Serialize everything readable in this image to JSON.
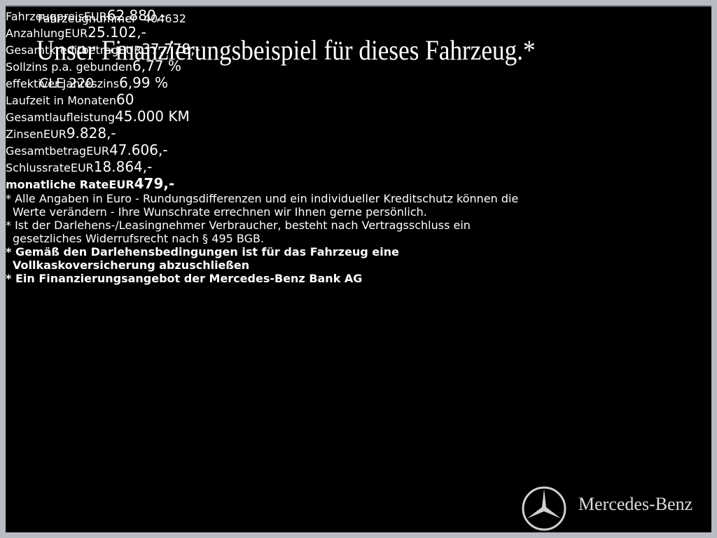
{
  "header": {
    "vehicle_number_label": "Fahrzeugnummer",
    "vehicle_number": "404632",
    "title": "Unser Finanzierungsbeispiel für dieses Fahrzeug.*",
    "model": "CLE 220"
  },
  "table": {
    "rows": [
      [
        "Fahrzeugpreis",
        "EUR",
        "62.880,-"
      ],
      [
        "Anzahlung",
        "EUR",
        "25.102,-"
      ],
      [
        "Gesamtkreditbetrag",
        "EUR",
        "37.778,-"
      ],
      [
        "Sollzins p.a. gebunden",
        "",
        "6,77 %"
      ],
      [
        "effektiver Jahreszins",
        "",
        "6,99 %"
      ],
      [
        "Laufzeit in Monaten",
        "",
        "60"
      ],
      [
        "Gesamtlaufleistung",
        "",
        "45.000 KM"
      ],
      [
        "Zinsen",
        "EUR",
        "9.828,-"
      ],
      [
        "Gesamtbetrag",
        "EUR",
        "47.606,-"
      ],
      [
        "Schlussrate",
        "EUR",
        "18.864,-"
      ],
      [
        "monatliche Rate",
        "EUR",
        "479,-"
      ]
    ]
  },
  "notes": [
    [
      "* Alle Angaben in Euro - Rundungsdifferenzen und ein individueller Kreditschutz können die",
      "Werte verändern - Ihre Wunschrate errechnen wir Ihnen gerne persönlich."
    ],
    [
      "* Ist der Darlehens-/Leasingnehmer Verbraucher, besteht nach Vertragsschluss ein",
      "gesetzliches Widerrufsrecht nach § 495 BGB."
    ],
    [
      "* Gemäß den Darlehensbedingungen ist für das Fahrzeug eine",
      "Vollkaskoversicherung abzuschließen"
    ],
    [
      "* Ein Finanzierungsangebot der Mercedes-Benz Bank AG"
    ]
  ],
  "brand": "Mercedes-Benz"
}
